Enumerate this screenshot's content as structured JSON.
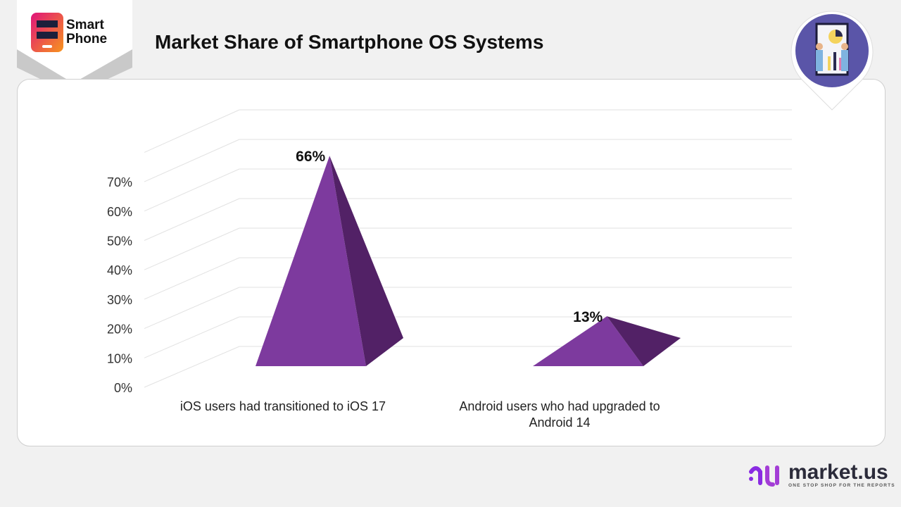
{
  "header": {
    "title": "Market Share of Smartphone OS Systems",
    "logo_text_line1": "Smart",
    "logo_text_line2": "Phone"
  },
  "brand": {
    "name": "market.us",
    "tagline": "ONE STOP SHOP FOR THE REPORTS"
  },
  "chart_data": {
    "type": "bar",
    "style": "3d-pyramid",
    "categories": [
      "iOS users had transitioned to iOS 17",
      "Android users who had upgraded to Android 14"
    ],
    "values": [
      66,
      13
    ],
    "data_labels": [
      "66%",
      "13%"
    ],
    "y_ticks": [
      "0%",
      "10%",
      "20%",
      "30%",
      "40%",
      "50%",
      "60%",
      "70%"
    ],
    "ylim": [
      0,
      80
    ],
    "grid": true,
    "colors": {
      "front": "#7d3a9e",
      "side": "#522166"
    }
  }
}
